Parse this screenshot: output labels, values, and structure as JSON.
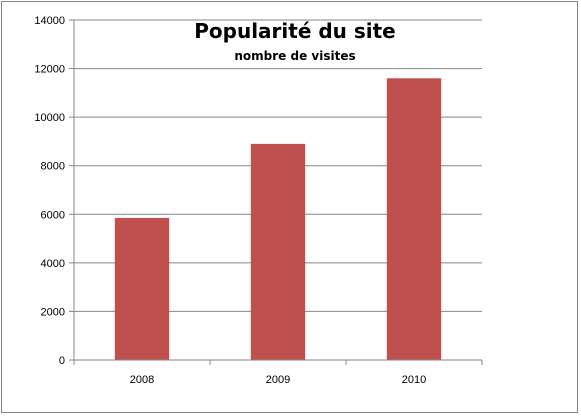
{
  "chart_data": {
    "type": "bar",
    "title": "Popularité du site",
    "subtitle": "nombre de visites",
    "categories": [
      "2008",
      "2009",
      "2010"
    ],
    "values": [
      5850,
      8900,
      11600
    ],
    "ylim": [
      0,
      14000
    ],
    "yticks": [
      0,
      2000,
      4000,
      6000,
      8000,
      10000,
      12000,
      14000
    ],
    "ytick_labels": [
      "0",
      "2000",
      "4000",
      "6000",
      "8000",
      "10000",
      "12000",
      "14000"
    ],
    "grid": true,
    "legend": "none",
    "colors": {
      "bar": "#c0504d",
      "grid": "#868686",
      "axis": "#868686"
    }
  }
}
